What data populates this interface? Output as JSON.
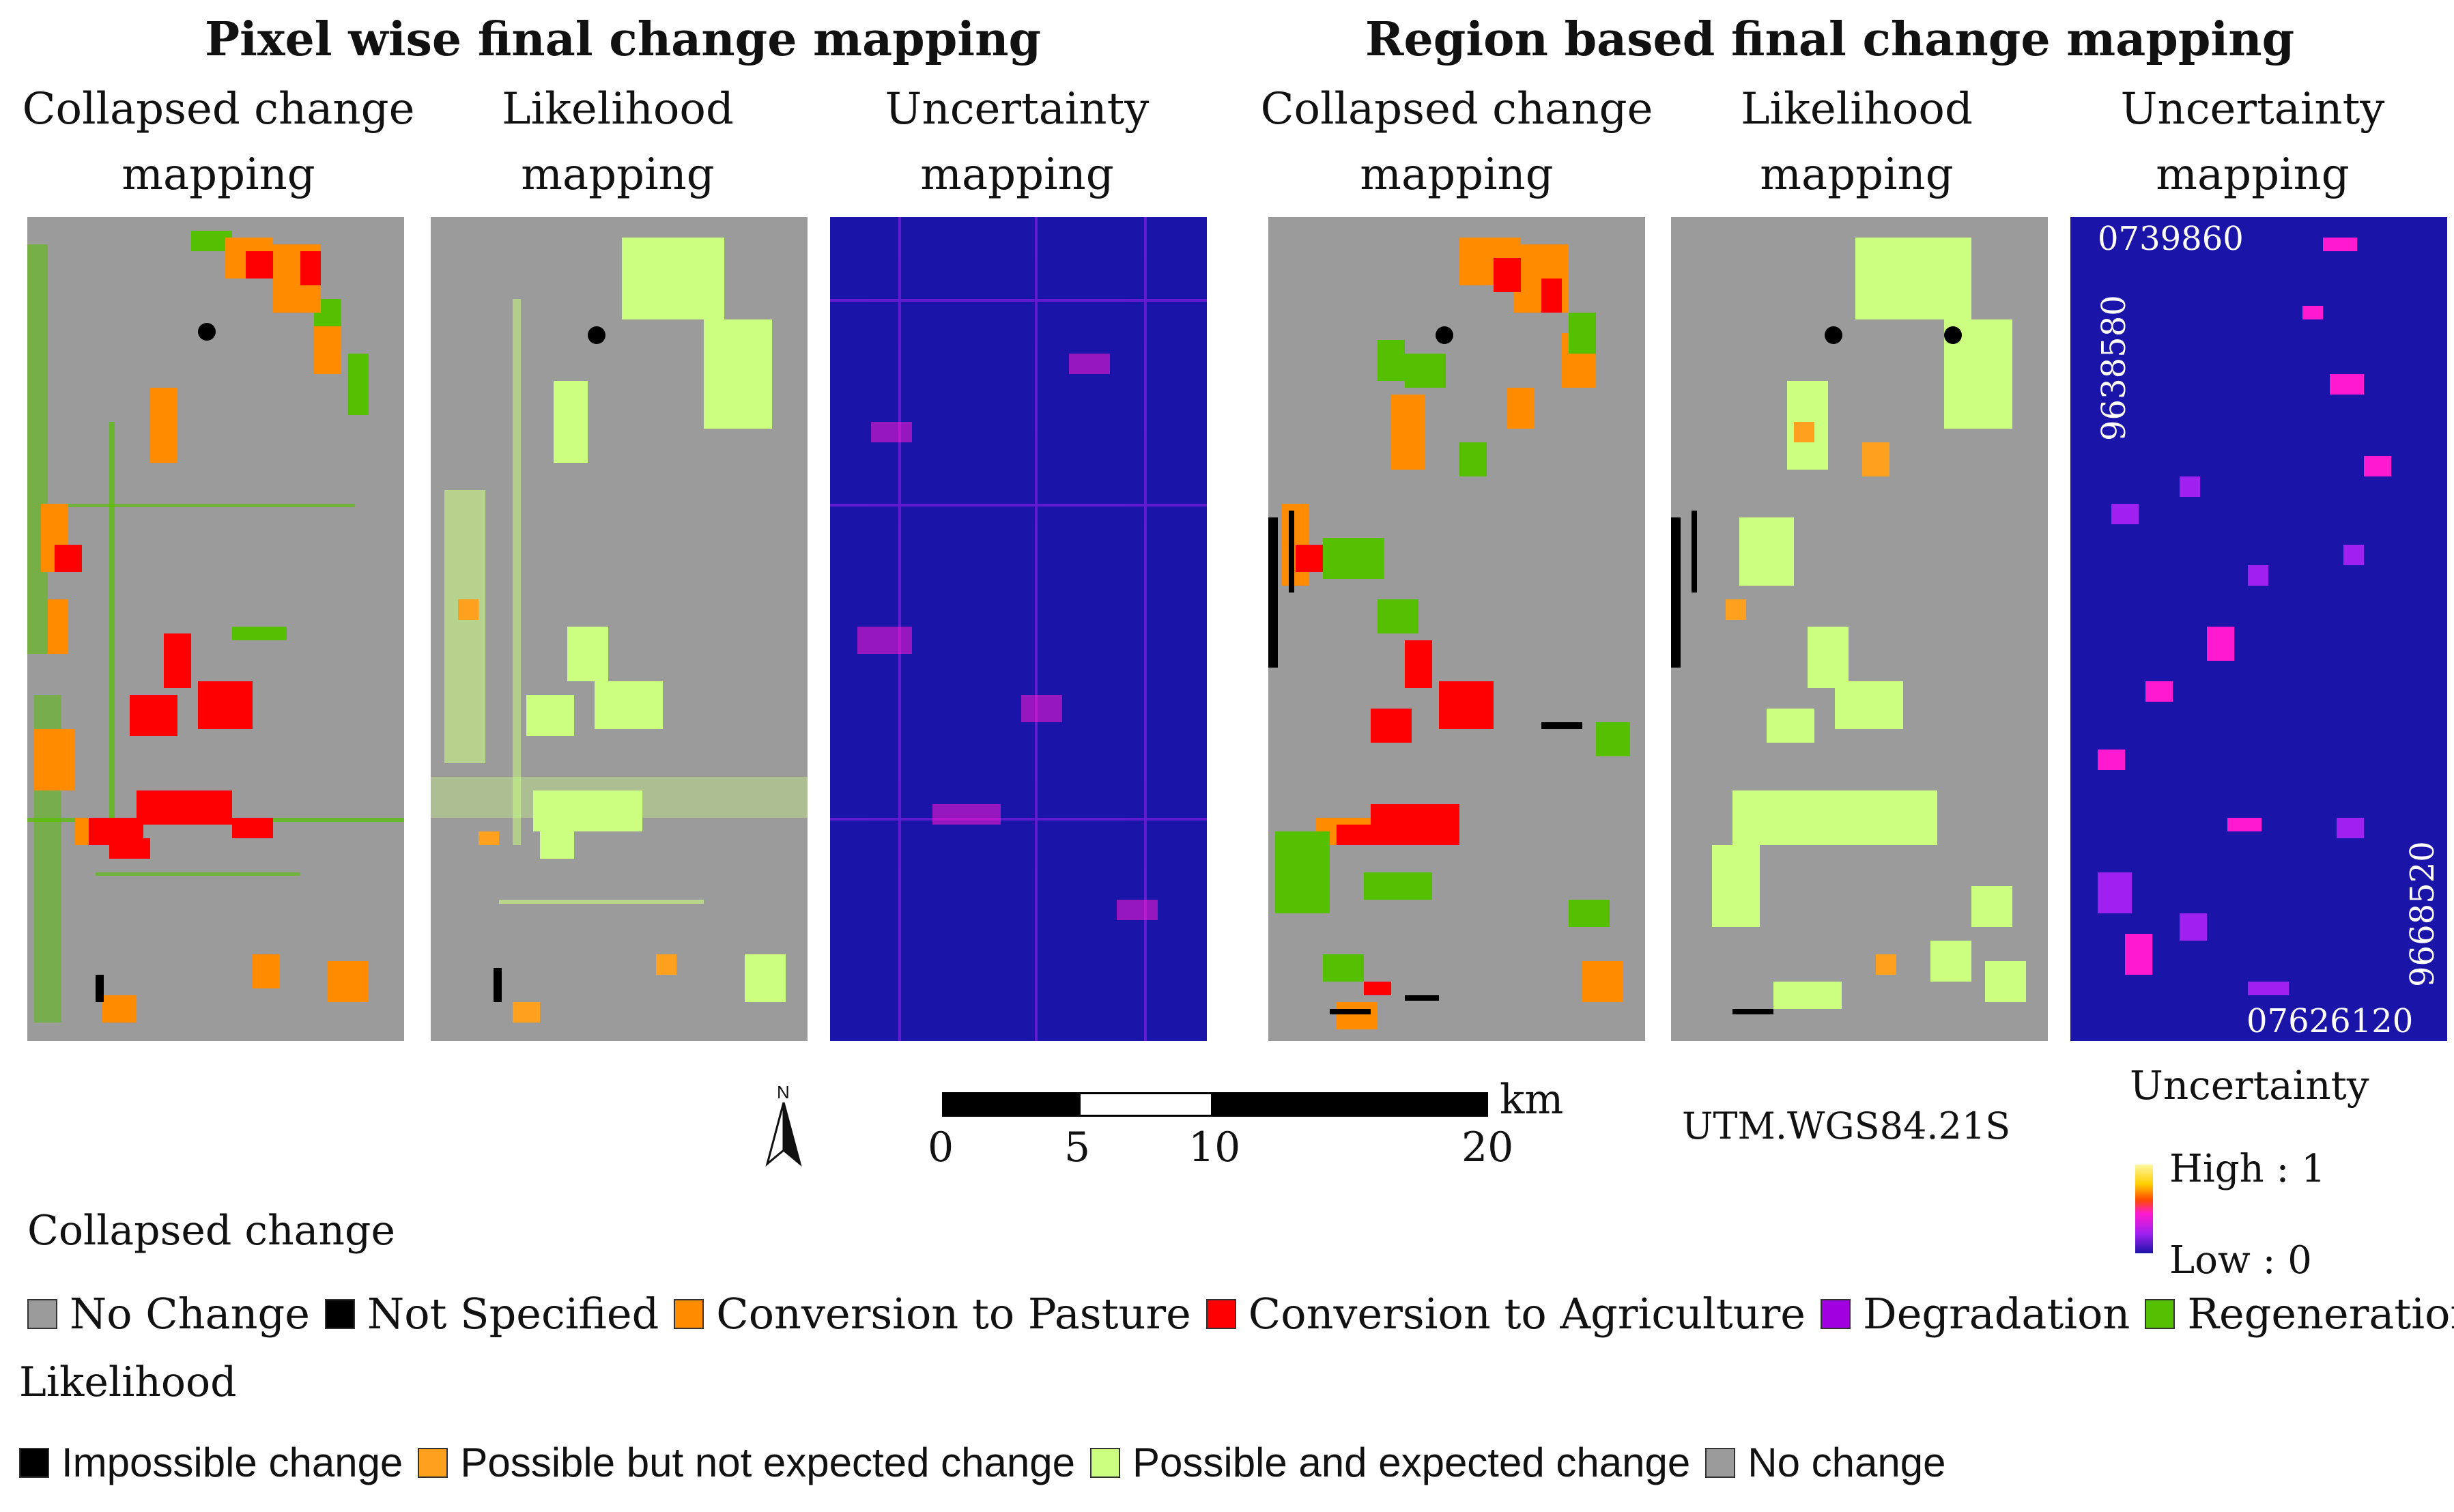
{
  "titles": {
    "pixel": "Pixel wise final change mapping",
    "region": "Region based final change mapping"
  },
  "panels": [
    {
      "line1": "Collapsed change",
      "line2": "mapping"
    },
    {
      "line1": "Likelihood",
      "line2": "mapping"
    },
    {
      "line1": "Uncertainty",
      "line2": "mapping"
    },
    {
      "line1": "Collapsed change",
      "line2": "mapping"
    },
    {
      "line1": "Likelihood",
      "line2": "mapping"
    },
    {
      "line1": "Uncertainty",
      "line2": "mapping"
    }
  ],
  "coordinates": {
    "top_easting": "0739860",
    "left_northing": "9638580",
    "right_northing": "9668520",
    "bottom_easting": "07626120"
  },
  "north_arrow": {
    "label": "N",
    "icon": "north-arrow-icon"
  },
  "scale_bar": {
    "unit": "km",
    "ticks": [
      "0",
      "5",
      "10",
      "20"
    ],
    "tick_values": [
      0,
      5,
      10,
      20
    ]
  },
  "projection": "UTM.WGS84.21S",
  "uncertainty_legend": {
    "title": "Uncertainty",
    "high": "High : 1",
    "low": "Low : 0"
  },
  "collapsed_change_legend": {
    "title": "Collapsed change",
    "items": [
      {
        "label": "No Change",
        "color": "#9b9b9b"
      },
      {
        "label": "Not Specified",
        "color": "#000000"
      },
      {
        "label": "Conversion to Pasture",
        "color": "#ff8c00"
      },
      {
        "label": "Conversion to Agriculture",
        "color": "#ff0000"
      },
      {
        "label": "Degradation",
        "color": "#a000e0"
      },
      {
        "label": "Regeneration",
        "color": "#55c000"
      }
    ]
  },
  "likelihood_legend": {
    "title": "Likelihood",
    "items": [
      {
        "label": "Impossible change",
        "color": "#000000"
      },
      {
        "label": "Possible but not expected change",
        "color": "#ffa01e"
      },
      {
        "label": "Possible and expected change",
        "color": "#ccff80"
      },
      {
        "label": "No change",
        "color": "#9b9b9b"
      }
    ]
  },
  "colors": {
    "map_background": "#9b9b9b",
    "uncertainty_background": "#1a14a8",
    "uncertainty_high": "#ff1ad0",
    "uncertainty_mid": "#a020f0"
  }
}
